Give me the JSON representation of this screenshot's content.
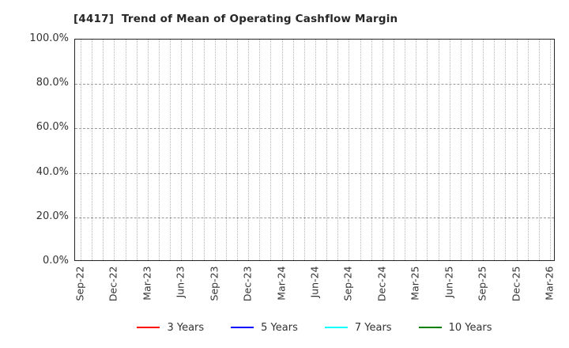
{
  "chart_data": {
    "type": "line",
    "title": "[4417]  Trend of Mean of Operating Cashflow Margin",
    "xlabel": "",
    "ylabel": "",
    "ylim": [
      0,
      100
    ],
    "grid": true,
    "legend_position": "bottom",
    "x_ticks": [
      "Sep-22",
      "Dec-22",
      "Mar-23",
      "Jun-23",
      "Sep-23",
      "Dec-23",
      "Mar-24",
      "Jun-24",
      "Sep-24",
      "Dec-24",
      "Mar-25",
      "Jun-25",
      "Sep-25",
      "Dec-25",
      "Mar-26"
    ],
    "x_minor_divisions_per_interval": 3,
    "y_ticks": [
      {
        "label": "100.0%",
        "value": 100
      },
      {
        "label": "80.0%",
        "value": 80
      },
      {
        "label": "60.0%",
        "value": 60
      },
      {
        "label": "40.0%",
        "value": 40
      },
      {
        "label": "20.0%",
        "value": 20
      },
      {
        "label": "0.0%",
        "value": 0
      }
    ],
    "series": [
      {
        "name": "3 Years",
        "color": "#ff0000",
        "values": []
      },
      {
        "name": "5 Years",
        "color": "#0000ff",
        "values": []
      },
      {
        "name": "7 Years",
        "color": "#00ffff",
        "values": []
      },
      {
        "name": "10 Years",
        "color": "#008000",
        "values": []
      }
    ]
  }
}
